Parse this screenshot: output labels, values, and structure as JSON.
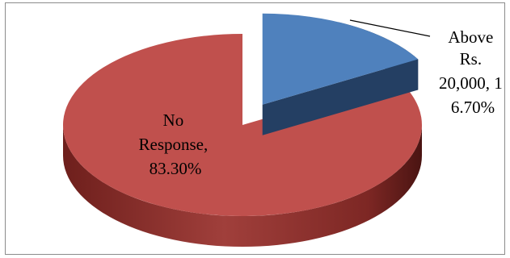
{
  "chart_data": {
    "type": "pie",
    "style": "3d-exploded",
    "slices": [
      {
        "label": "No Response",
        "value": 83.3,
        "color": "#C0504D"
      },
      {
        "label": "Above Rs. 20,000",
        "value": 16.7,
        "color": "#4F81BD"
      }
    ],
    "data_labels": [
      {
        "lines": [
          "No",
          "Response,",
          "83.30%"
        ]
      },
      {
        "lines": [
          "Above",
          "Rs.",
          "20,000, 1",
          "6.70%"
        ]
      }
    ],
    "legend": "none",
    "border": true
  }
}
